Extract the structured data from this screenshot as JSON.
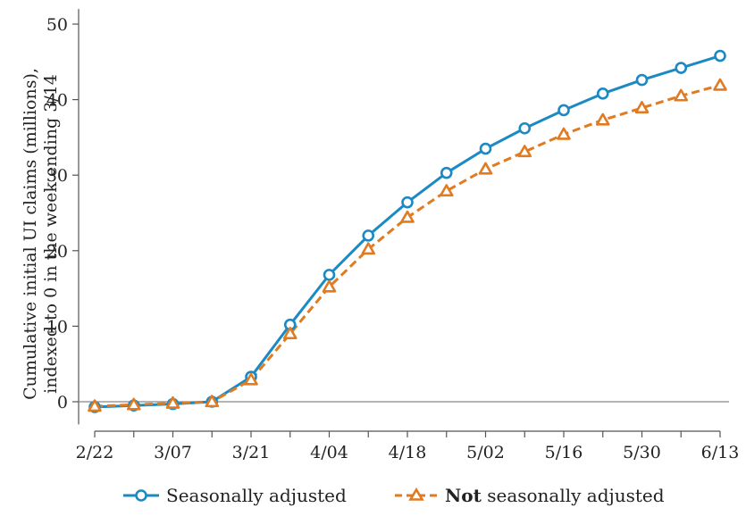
{
  "chart_data": {
    "type": "line",
    "title": "",
    "ylabel_line1": "Cumulative initial UI claims (millions),",
    "ylabel_line2": "indexed to 0 in the week ending 3/14",
    "xlabel": "",
    "x": [
      "2/22",
      "2/29",
      "3/07",
      "3/14",
      "3/21",
      "3/28",
      "4/04",
      "4/11",
      "4/18",
      "4/25",
      "5/02",
      "5/09",
      "5/16",
      "5/23",
      "5/30",
      "6/06",
      "6/13"
    ],
    "x_tick_labels": [
      "2/22",
      "3/07",
      "3/21",
      "4/04",
      "4/18",
      "5/02",
      "5/16",
      "5/30",
      "6/13"
    ],
    "y_ticks": [
      "0",
      "10",
      "20",
      "30",
      "40",
      "50"
    ],
    "ylim": [
      -3,
      52
    ],
    "series": [
      {
        "name": "Seasonally adjusted",
        "color": "#1b8ac4",
        "marker": "circle",
        "line_style": "solid",
        "values": [
          -0.7,
          -0.5,
          -0.3,
          0,
          3.3,
          10.2,
          16.8,
          22.0,
          26.4,
          30.3,
          33.5,
          36.2,
          38.6,
          40.8,
          42.6,
          44.2,
          45.8
        ]
      },
      {
        "name": "Not seasonally adjusted",
        "color": "#e07b22",
        "marker": "triangle",
        "line_style": "dashed",
        "values": [
          -0.6,
          -0.4,
          -0.2,
          0,
          2.9,
          9.0,
          15.2,
          20.2,
          24.4,
          27.9,
          30.8,
          33.1,
          35.4,
          37.3,
          38.9,
          40.5,
          41.9
        ]
      }
    ],
    "legend": {
      "position": "bottom",
      "items": [
        {
          "prefix": "",
          "bold": "",
          "text": "Seasonally adjusted"
        },
        {
          "prefix": "",
          "bold": "Not",
          "text": " seasonally adjusted"
        }
      ]
    },
    "zero_line": true,
    "grid": false
  }
}
